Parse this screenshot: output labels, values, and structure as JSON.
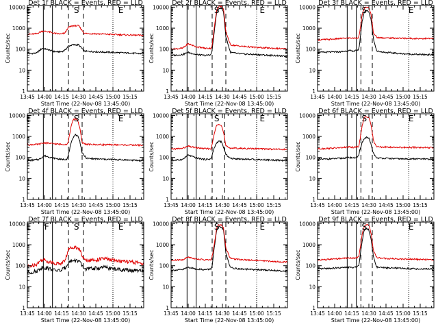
{
  "chart_data": {
    "type": "line",
    "layout": "3x3 grid",
    "x_tick_labels": [
      "13:45",
      "14:00",
      "14:15",
      "14:30",
      "14:45",
      "15:00",
      "15:15"
    ],
    "x_tick_minutes": [
      0,
      15,
      30,
      45,
      60,
      75,
      90
    ],
    "xlim_minutes": [
      0,
      102
    ],
    "y_tick_labels": [
      "1",
      "10",
      "100",
      "1000",
      "10000"
    ],
    "ylim": [
      1,
      12000
    ],
    "y_scale": "log",
    "ylabel": "Counts/sec",
    "xlabel": "Start Time (22-Nov-08 13:45:00)",
    "series_colors": {
      "black": "#000000",
      "red": "#e00000"
    },
    "panels": [
      {
        "title": "Det 1f BLACK = Events, RED = LLD",
        "markers": [
          {
            "label": "E",
            "x": 1
          },
          {
            "label": "S",
            "x": 43
          },
          {
            "label": "E",
            "x": 82
          }
        ],
        "solid_lines": [
          14,
          22
        ],
        "dashed_lines": [
          36,
          49
        ],
        "dotted_lines": [
          75
        ],
        "black": {
          "x": [
            0,
            8,
            13,
            18,
            24,
            30,
            33,
            35,
            36,
            40,
            45,
            50,
            60,
            75,
            90,
            102
          ],
          "y": [
            60,
            65,
            110,
            95,
            75,
            75,
            90,
            120,
            140,
            160,
            160,
            80,
            75,
            70,
            65,
            60
          ]
        },
        "red": {
          "x": [
            0,
            8,
            13,
            18,
            24,
            30,
            33,
            35,
            36,
            40,
            45,
            50,
            60,
            75,
            90,
            102
          ],
          "y": [
            500,
            540,
            720,
            680,
            560,
            520,
            600,
            900,
            1100,
            1300,
            1300,
            560,
            540,
            500,
            470,
            450
          ]
        }
      },
      {
        "title": "Det 2f BLACK = Events, RED = LLD",
        "markers": [
          {
            "label": "S",
            "x": 40
          },
          {
            "label": "E",
            "x": 80
          }
        ],
        "solid_lines": [
          14,
          22
        ],
        "dashed_lines": [
          36,
          48
        ],
        "dotted_lines": [
          75
        ],
        "black": {
          "x": [
            0,
            10,
            15,
            22,
            30,
            35,
            36,
            38,
            40,
            42,
            44,
            46,
            48,
            52,
            60,
            75,
            90,
            102
          ],
          "y": [
            50,
            55,
            70,
            55,
            50,
            55,
            90,
            800,
            6000,
            9000,
            9000,
            6000,
            400,
            70,
            60,
            55,
            50,
            45
          ]
        },
        "red": {
          "x": [
            0,
            10,
            15,
            22,
            30,
            35,
            36,
            38,
            40,
            42,
            44,
            46,
            48,
            52,
            60,
            75,
            90,
            102
          ],
          "y": [
            100,
            110,
            180,
            130,
            110,
            110,
            150,
            1200,
            8000,
            11000,
            11000,
            8000,
            700,
            160,
            140,
            120,
            110,
            100
          ]
        }
      },
      {
        "title": "Det 3f BLACK = Events, RED = LLD",
        "markers": [
          {
            "label": "S",
            "x": 41
          },
          {
            "label": "E",
            "x": 82
          }
        ],
        "solid_lines": [
          26,
          34
        ],
        "dashed_lines": [
          38,
          48
        ],
        "dotted_lines": [
          80
        ],
        "black": {
          "x": [
            0,
            10,
            20,
            28,
            32,
            36,
            37,
            39,
            41,
            43,
            45,
            47,
            49,
            52,
            60,
            75,
            90,
            102
          ],
          "y": [
            70,
            72,
            75,
            85,
            80,
            95,
            200,
            2000,
            6000,
            7000,
            6000,
            2500,
            300,
            80,
            70,
            60,
            55,
            55
          ]
        },
        "red": {
          "x": [
            0,
            10,
            20,
            28,
            32,
            36,
            37,
            39,
            41,
            43,
            45,
            47,
            49,
            52,
            60,
            75,
            90,
            102
          ],
          "y": [
            280,
            290,
            320,
            340,
            330,
            360,
            600,
            4000,
            9000,
            10000,
            9000,
            4500,
            600,
            360,
            340,
            330,
            320,
            320
          ]
        }
      },
      {
        "title": "Det 4f BLACK = Events, RED = LLD",
        "markers": [
          {
            "label": "E",
            "x": 1
          },
          {
            "label": "S",
            "x": 43
          },
          {
            "label": "E",
            "x": 82
          }
        ],
        "solid_lines": [
          14,
          22
        ],
        "dashed_lines": [
          36,
          48
        ],
        "dotted_lines": [
          75
        ],
        "black": {
          "x": [
            0,
            10,
            15,
            22,
            30,
            35,
            36,
            38,
            40,
            42,
            44,
            46,
            48,
            52,
            60,
            75,
            90,
            102
          ],
          "y": [
            70,
            80,
            120,
            95,
            80,
            85,
            140,
            400,
            900,
            1200,
            1100,
            600,
            160,
            90,
            85,
            80,
            75,
            70
          ]
        },
        "red": {
          "x": [
            0,
            10,
            15,
            22,
            30,
            35,
            36,
            38,
            40,
            42,
            44,
            46,
            48,
            52,
            60,
            75,
            90,
            102
          ],
          "y": [
            400,
            420,
            500,
            450,
            420,
            430,
            600,
            2500,
            6000,
            7000,
            6000,
            2500,
            500,
            420,
            410,
            400,
            390,
            380
          ]
        }
      },
      {
        "title": "Det 5f BLACK = Events, RED = LLD",
        "markers": [
          {
            "label": "S",
            "x": 40
          },
          {
            "label": "E",
            "x": 80
          }
        ],
        "solid_lines": [
          14,
          22
        ],
        "dashed_lines": [
          36,
          47
        ],
        "dotted_lines": [
          75
        ],
        "black": {
          "x": [
            0,
            10,
            15,
            22,
            30,
            35,
            36,
            38,
            40,
            42,
            44,
            46,
            48,
            52,
            60,
            75,
            90,
            102
          ],
          "y": [
            70,
            80,
            130,
            95,
            80,
            85,
            130,
            300,
            500,
            600,
            550,
            300,
            140,
            90,
            85,
            80,
            75,
            70
          ]
        },
        "red": {
          "x": [
            0,
            10,
            15,
            22,
            30,
            35,
            36,
            38,
            40,
            42,
            44,
            46,
            48,
            52,
            60,
            75,
            90,
            102
          ],
          "y": [
            250,
            270,
            340,
            290,
            260,
            260,
            400,
            1500,
            3500,
            4000,
            3500,
            1500,
            350,
            280,
            270,
            260,
            250,
            240
          ]
        }
      },
      {
        "title": "Det 6f BLACK = Events, RED = LLD",
        "markers": [
          {
            "label": "S",
            "x": 41
          },
          {
            "label": "E",
            "x": 82
          }
        ],
        "solid_lines": [
          26,
          34
        ],
        "dashed_lines": [
          38,
          48
        ],
        "dotted_lines": [
          80
        ],
        "black": {
          "x": [
            0,
            10,
            20,
            28,
            32,
            36,
            37,
            39,
            41,
            43,
            45,
            47,
            49,
            52,
            60,
            75,
            90,
            102
          ],
          "y": [
            80,
            85,
            90,
            100,
            95,
            110,
            220,
            500,
            800,
            900,
            800,
            400,
            150,
            95,
            90,
            85,
            85,
            80
          ]
        },
        "red": {
          "x": [
            0,
            10,
            20,
            28,
            32,
            36,
            37,
            39,
            41,
            43,
            45,
            47,
            49,
            52,
            60,
            75,
            90,
            102
          ],
          "y": [
            260,
            270,
            290,
            310,
            300,
            330,
            600,
            3000,
            8000,
            9000,
            8000,
            3500,
            600,
            320,
            310,
            300,
            300,
            290
          ]
        }
      },
      {
        "title": "Det 7f BLACK = Events, RED = LLD",
        "markers": [
          {
            "label": "E",
            "x": 1
          },
          {
            "label": "F",
            "x": 17
          },
          {
            "label": "S",
            "x": 43
          },
          {
            "label": "E",
            "x": 82
          }
        ],
        "solid_lines": [
          14,
          22
        ],
        "dashed_lines": [
          36,
          49
        ],
        "dotted_lines": [
          75
        ],
        "black": {
          "x": [
            0,
            8,
            13,
            18,
            24,
            30,
            33,
            35,
            36,
            40,
            45,
            50,
            60,
            68,
            75,
            90,
            102
          ],
          "y": [
            45,
            55,
            85,
            75,
            60,
            60,
            80,
            120,
            150,
            180,
            170,
            70,
            75,
            85,
            70,
            60,
            55
          ]
        },
        "red": {
          "x": [
            0,
            8,
            13,
            18,
            24,
            30,
            33,
            35,
            36,
            40,
            45,
            50,
            60,
            68,
            75,
            90,
            102
          ],
          "y": [
            90,
            120,
            200,
            160,
            130,
            130,
            180,
            400,
            600,
            800,
            700,
            180,
            190,
            220,
            180,
            150,
            130
          ]
        }
      },
      {
        "title": "Det 8f BLACK = Events, RED = LLD",
        "markers": [
          {
            "label": "S",
            "x": 40
          },
          {
            "label": "E",
            "x": 80
          }
        ],
        "solid_lines": [
          14,
          22
        ],
        "dashed_lines": [
          36,
          48
        ],
        "dotted_lines": [
          75
        ],
        "black": {
          "x": [
            0,
            10,
            15,
            22,
            30,
            35,
            36,
            38,
            40,
            42,
            44,
            46,
            48,
            52,
            60,
            75,
            90,
            102
          ],
          "y": [
            60,
            65,
            85,
            70,
            65,
            70,
            100,
            800,
            5000,
            7000,
            7000,
            5000,
            400,
            80,
            70,
            65,
            60,
            55
          ]
        },
        "red": {
          "x": [
            0,
            10,
            15,
            22,
            30,
            35,
            36,
            38,
            40,
            42,
            44,
            46,
            48,
            52,
            60,
            75,
            90,
            102
          ],
          "y": [
            180,
            190,
            260,
            210,
            190,
            190,
            260,
            1200,
            6500,
            9000,
            9000,
            6500,
            700,
            220,
            200,
            180,
            160,
            150
          ]
        }
      },
      {
        "title": "Det 9f BLACK = Events, RED = LLD",
        "markers": [
          {
            "label": "S",
            "x": 41
          },
          {
            "label": "E",
            "x": 82
          }
        ],
        "solid_lines": [
          26,
          34
        ],
        "dashed_lines": [
          38,
          48
        ],
        "dotted_lines": [
          80
        ],
        "black": {
          "x": [
            0,
            10,
            20,
            28,
            32,
            36,
            37,
            39,
            41,
            43,
            45,
            47,
            49,
            52,
            60,
            75,
            90,
            102
          ],
          "y": [
            70,
            75,
            80,
            85,
            80,
            100,
            200,
            1500,
            5000,
            6000,
            5000,
            1800,
            250,
            85,
            80,
            75,
            70,
            70
          ]
        },
        "red": {
          "x": [
            0,
            10,
            20,
            28,
            32,
            36,
            37,
            39,
            41,
            43,
            45,
            47,
            49,
            52,
            60,
            75,
            90,
            102
          ],
          "y": [
            190,
            200,
            220,
            240,
            230,
            260,
            500,
            3000,
            8000,
            9000,
            8000,
            3500,
            500,
            240,
            220,
            210,
            200,
            190
          ]
        }
      }
    ]
  }
}
